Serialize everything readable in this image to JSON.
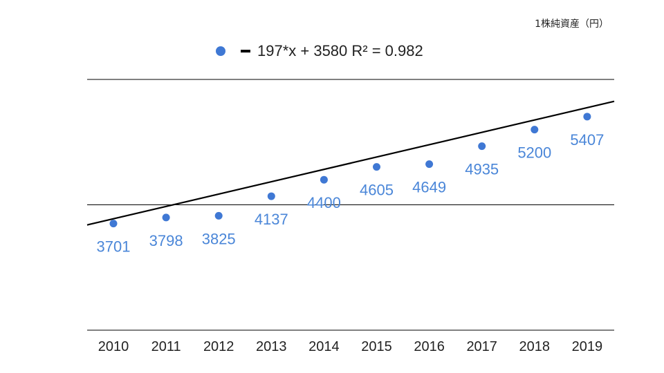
{
  "unit_label": "1株純資産（円）",
  "legend": {
    "trendline_label": "197*x + 3580 R² = 0.982"
  },
  "colors": {
    "point": "#3f78d4",
    "trendline": "#000000",
    "grid": "#000000",
    "label": "#4a86d8"
  },
  "chart_data": {
    "type": "scatter",
    "categories": [
      "2010",
      "2011",
      "2012",
      "2013",
      "2014",
      "2015",
      "2016",
      "2017",
      "2018",
      "2019"
    ],
    "values": [
      3701,
      3798,
      3825,
      4137,
      4400,
      4605,
      4649,
      4935,
      5200,
      5407
    ],
    "data_labels": [
      "3701",
      "3798",
      "3825",
      "4137",
      "4400",
      "4605",
      "4649",
      "4935",
      "5200",
      "5407"
    ],
    "trendline": {
      "slope": 197,
      "intercept": 3580,
      "r2": 0.982,
      "label": "197*x + 3580 R² = 0.982"
    },
    "y_gridlines": [
      2000,
      4000,
      6000
    ],
    "ylim": [
      2000,
      6000
    ],
    "grid": true,
    "legend_position": "top",
    "xlabel": "",
    "ylabel": "1株純資産（円）"
  }
}
